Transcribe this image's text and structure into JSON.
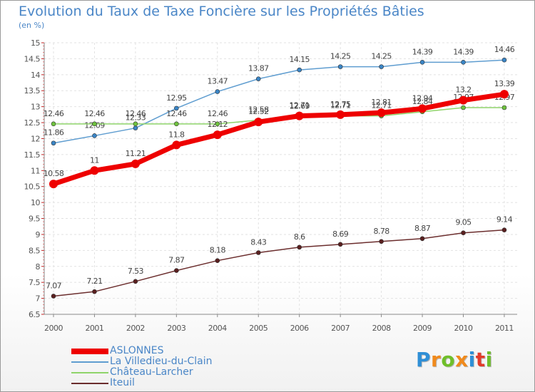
{
  "title": "Evolution du Taux de Taxe Foncière sur les Propriétés Bâties",
  "subtitle": "(en %)",
  "logo": {
    "text": "Proxiti",
    "letter_colors": [
      "#2f8fd6",
      "#f08a1c",
      "#6fbf2a",
      "#f08a1c",
      "#2f8fd6",
      "#e23b2a",
      "#6fbf2a"
    ]
  },
  "chart_data": {
    "type": "line",
    "x": [
      "2000",
      "2001",
      "2002",
      "2003",
      "2004",
      "2005",
      "2006",
      "2007",
      "2008",
      "2009",
      "2010",
      "2011"
    ],
    "ylim": [
      6.5,
      15
    ],
    "yticks": [
      "6.5",
      "7",
      "7.5",
      "8",
      "8.5",
      "9",
      "9.5",
      "10",
      "10.5",
      "11",
      "11.5",
      "12",
      "12.5",
      "13",
      "13.5",
      "14",
      "14.5",
      "15"
    ],
    "grid": true,
    "legend_position": "bottom-left",
    "series": [
      {
        "name": "La Villedieu-du-Clain",
        "color": "#5f9dd0",
        "marker": "#3a85c6",
        "values": [
          11.86,
          12.09,
          12.33,
          12.95,
          13.47,
          13.87,
          14.15,
          14.25,
          14.25,
          14.39,
          14.39,
          14.46
        ],
        "labels": [
          "11.86",
          "12.09",
          "12.33",
          "12.95",
          "13.47",
          "13.87",
          "14.15",
          "14.25",
          "14.25",
          "14.39",
          "14.39",
          "14.46"
        ]
      },
      {
        "name": "Château-Larcher",
        "color": "#8fd46a",
        "marker": "#6fc33e",
        "values": [
          12.46,
          12.46,
          12.46,
          12.46,
          12.46,
          12.58,
          12.69,
          12.71,
          12.71,
          12.84,
          12.97,
          12.97
        ],
        "labels": [
          "12.46",
          "12.46",
          "12.46",
          "12.46",
          "12.46",
          "12.58",
          "12.69",
          "12.71",
          "12.71",
          "12.84",
          "12.97",
          "12.97"
        ]
      },
      {
        "name": "Iteuil",
        "color": "#6b2d2d",
        "marker": "#5a1f1f",
        "values": [
          7.07,
          7.21,
          7.53,
          7.87,
          8.18,
          8.43,
          8.6,
          8.69,
          8.78,
          8.87,
          9.05,
          9.14
        ],
        "labels": [
          "7.07",
          "7.21",
          "7.53",
          "7.87",
          "8.18",
          "8.43",
          "8.6",
          "8.69",
          "8.78",
          "8.87",
          "9.05",
          "9.14"
        ]
      },
      {
        "name": "ASLONNES",
        "color": "#ee0000",
        "marker": "#ee0000",
        "values": [
          10.58,
          11,
          11.21,
          11.8,
          12.12,
          12.52,
          12.71,
          12.75,
          12.81,
          12.94,
          13.2,
          13.39
        ],
        "labels": [
          "10.58",
          "11",
          "11.21",
          "11.8",
          "12.12",
          "12.52",
          "12.71",
          "12.75",
          "12.81",
          "12.94",
          "13.2",
          "13.39"
        ]
      }
    ],
    "legend": [
      {
        "name": "ASLONNES",
        "color": "#ee0000"
      },
      {
        "name": "La Villedieu-du-Clain",
        "color": "#5f9dd0"
      },
      {
        "name": "Château-Larcher",
        "color": "#8fd46a"
      },
      {
        "name": "Iteuil",
        "color": "#6b2d2d"
      }
    ]
  }
}
